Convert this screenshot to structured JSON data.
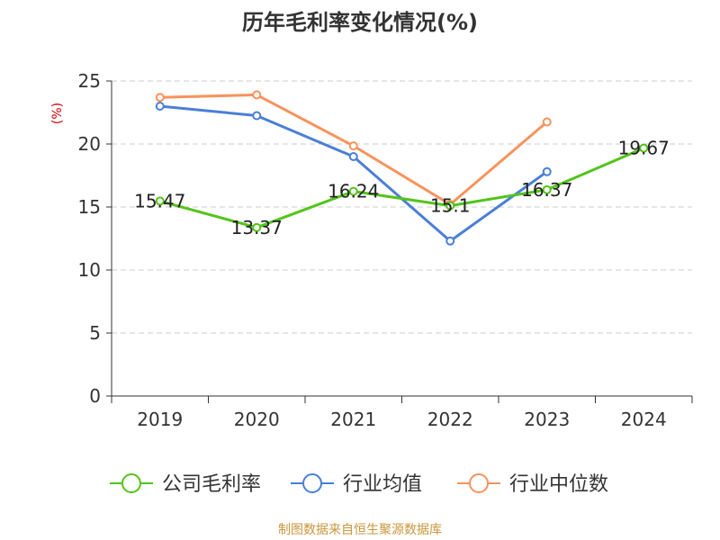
{
  "chart_data": {
    "type": "line",
    "title": "历年毛利率变化情况(%)",
    "ylabel": "(%)",
    "xlabel": "",
    "categories": [
      "2019",
      "2020",
      "2021",
      "2022",
      "2023",
      "2024"
    ],
    "ylim": [
      0,
      25
    ],
    "yticks": [
      0,
      5,
      10,
      15,
      20,
      25
    ],
    "grid": true,
    "legend_position": "bottom",
    "series": [
      {
        "name": "公司毛利率",
        "color": "#52c41a",
        "values": [
          15.47,
          13.37,
          16.24,
          15.1,
          16.37,
          19.67
        ],
        "labels": [
          "15.47",
          "13.37",
          "16.24",
          "15.1",
          "16.37",
          "19.67"
        ],
        "show_labels": true
      },
      {
        "name": "行业均值",
        "color": "#4a7fd8",
        "values": [
          23.0,
          22.25,
          19.0,
          12.3,
          17.8,
          null
        ],
        "show_labels": false
      },
      {
        "name": "行业中位数",
        "color": "#f7935c",
        "values": [
          23.7,
          23.9,
          19.85,
          15.2,
          21.75,
          null
        ],
        "show_labels": false
      }
    ]
  },
  "footer": {
    "source": "制图数据来自恒生聚源数据库"
  }
}
